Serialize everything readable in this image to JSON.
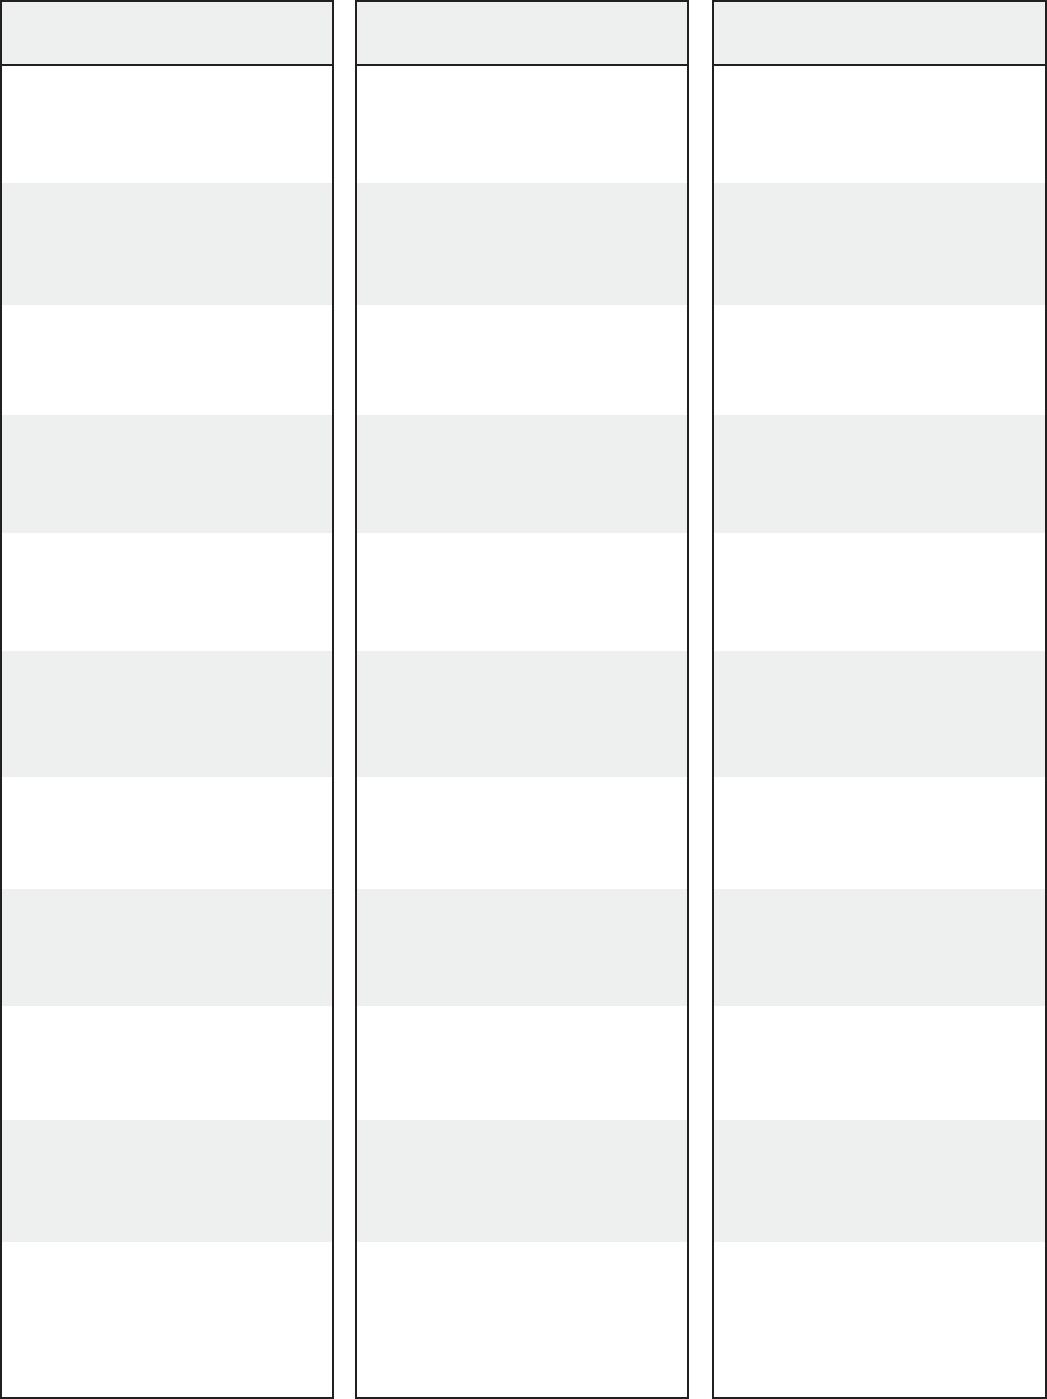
{
  "colors": {
    "border": "#231f20",
    "shaded_row": "#eef0ef",
    "plain_row": "#ffffff",
    "header_fill": "#eef0ef"
  },
  "columns": [
    {
      "header": ""
    },
    {
      "header": ""
    },
    {
      "header": ""
    }
  ]
}
